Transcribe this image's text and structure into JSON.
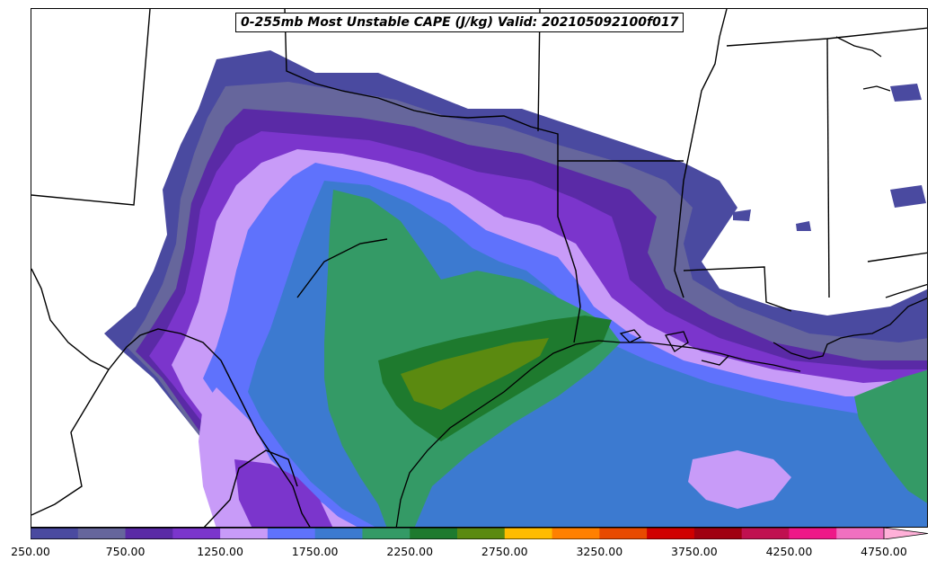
{
  "title": "0-255mb Most Unstable CAPE (J/kg) Valid: 202105092100f017",
  "colorbar": {
    "colors": [
      "#4a4aa0",
      "#66669c",
      "#5a2aa6",
      "#7b35cc",
      "#c89bf8",
      "#5f72fc",
      "#3c7ad0",
      "#349a66",
      "#1e7a2e",
      "#5b8a10",
      "#ffbc00",
      "#ff8000",
      "#e84a00",
      "#d00000",
      "#a00010",
      "#c01050",
      "#ee1888",
      "#f070c0",
      "#ffb0d8"
    ],
    "tick_labels": [
      "250.00",
      "750.00",
      "1250.00",
      "1750.00",
      "2250.00",
      "2750.00",
      "3250.00",
      "3750.00",
      "4250.00",
      "4750.00"
    ]
  },
  "map": {
    "fill_colors": {
      "band_250": "#4a4aa0",
      "band_500": "#66669c",
      "band_750": "#5a2aa6",
      "band_1000": "#7b35cc",
      "band_1250": "#c89bf8",
      "band_1500": "#5f72fc",
      "band_1750": "#3c7ad0",
      "band_2000": "#349a66",
      "band_2250": "#1e7a2e",
      "band_2500": "#5b8a10"
    }
  }
}
